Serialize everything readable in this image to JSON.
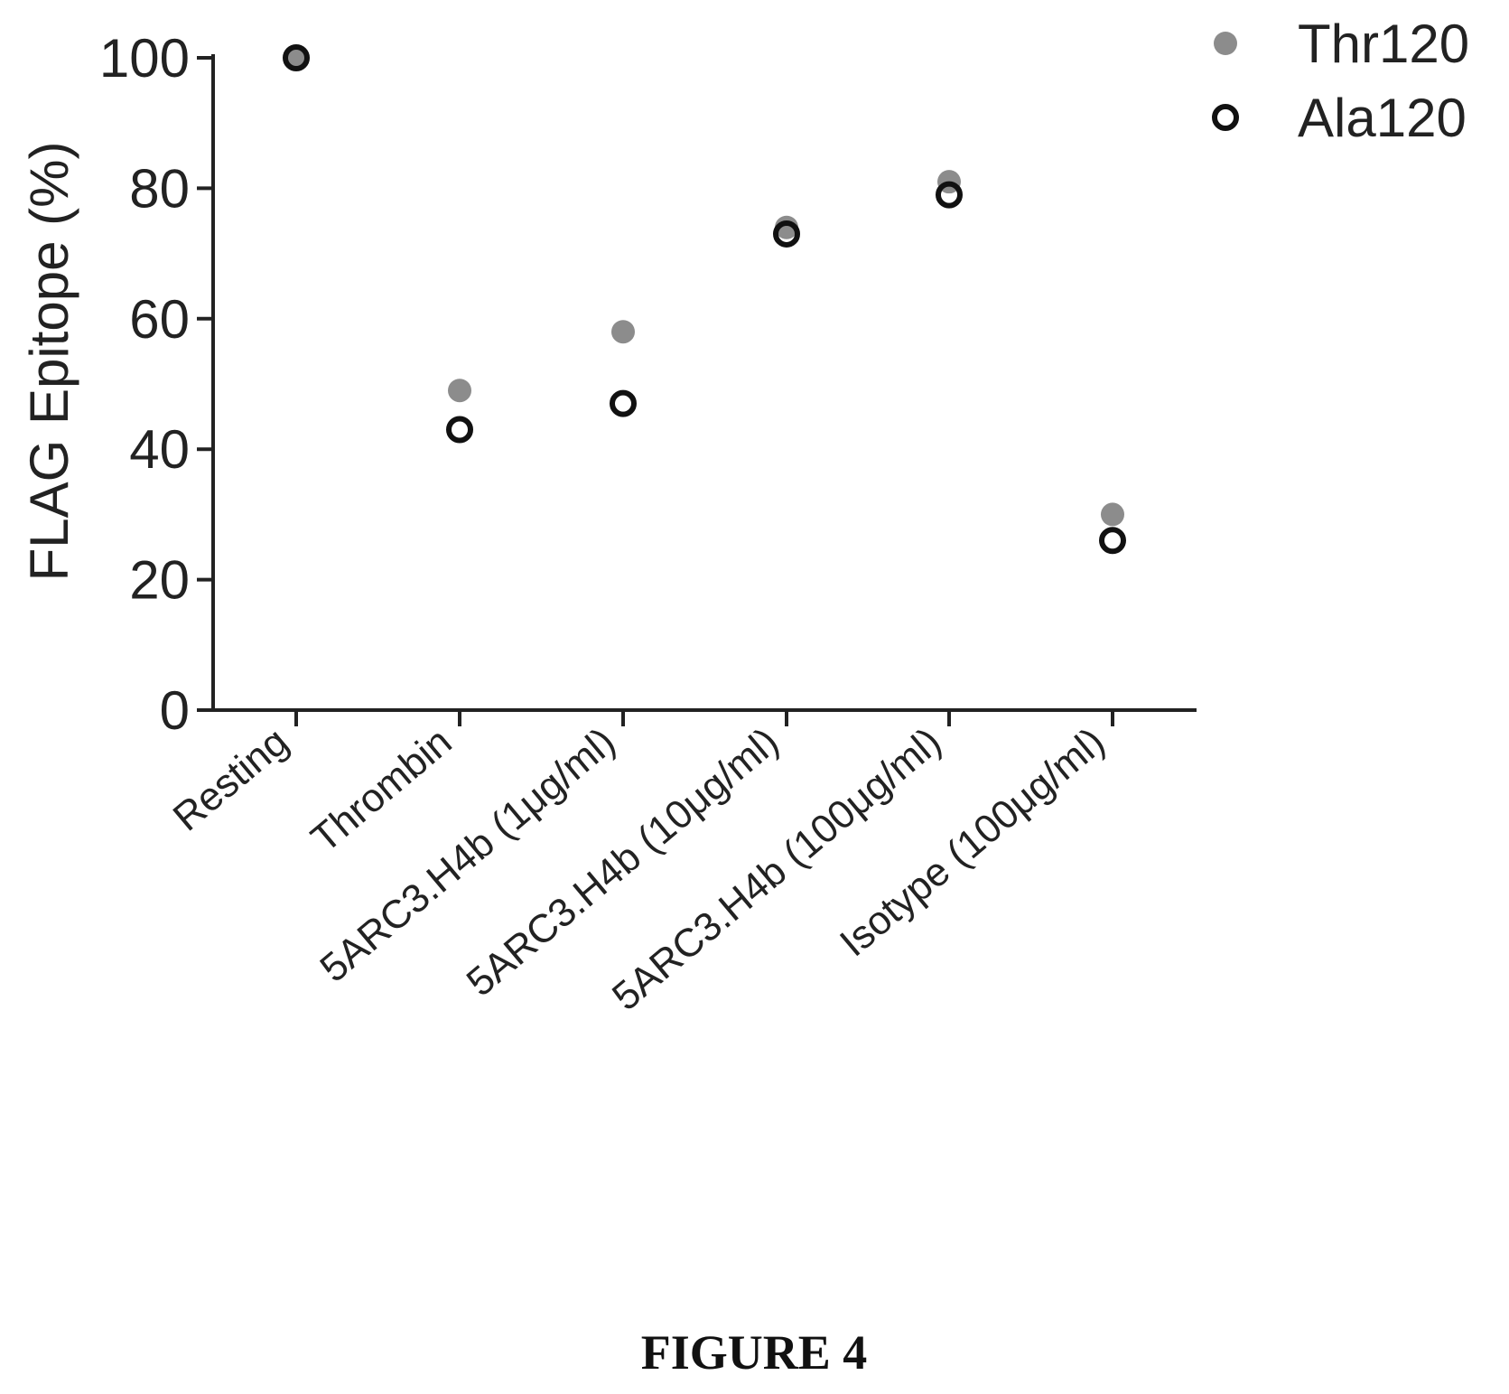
{
  "chart_data": {
    "type": "scatter",
    "categories": [
      "Resting",
      "Thrombin",
      "5ARC3.H4b  (1μg/ml)",
      "5ARC3.H4b  (10μg/ml)",
      "5ARC3.H4b  (100μg/ml)",
      "Isotype (100μg/ml)"
    ],
    "series": [
      {
        "name": "Thr120",
        "marker": "filled",
        "color": "#8c8c8c",
        "values": [
          100,
          49,
          58,
          74,
          81,
          30
        ]
      },
      {
        "name": "Ala120",
        "marker": "open",
        "color": "#111111",
        "values": [
          100,
          43,
          47,
          73,
          79,
          26
        ]
      }
    ],
    "xlabel": "",
    "ylabel": "FLAG Epitope (%)",
    "ylim": [
      0,
      100
    ],
    "yticks": [
      0,
      20,
      40,
      60,
      80,
      100
    ],
    "legend": "top-right",
    "grid": false
  },
  "caption": "FIGURE 4"
}
